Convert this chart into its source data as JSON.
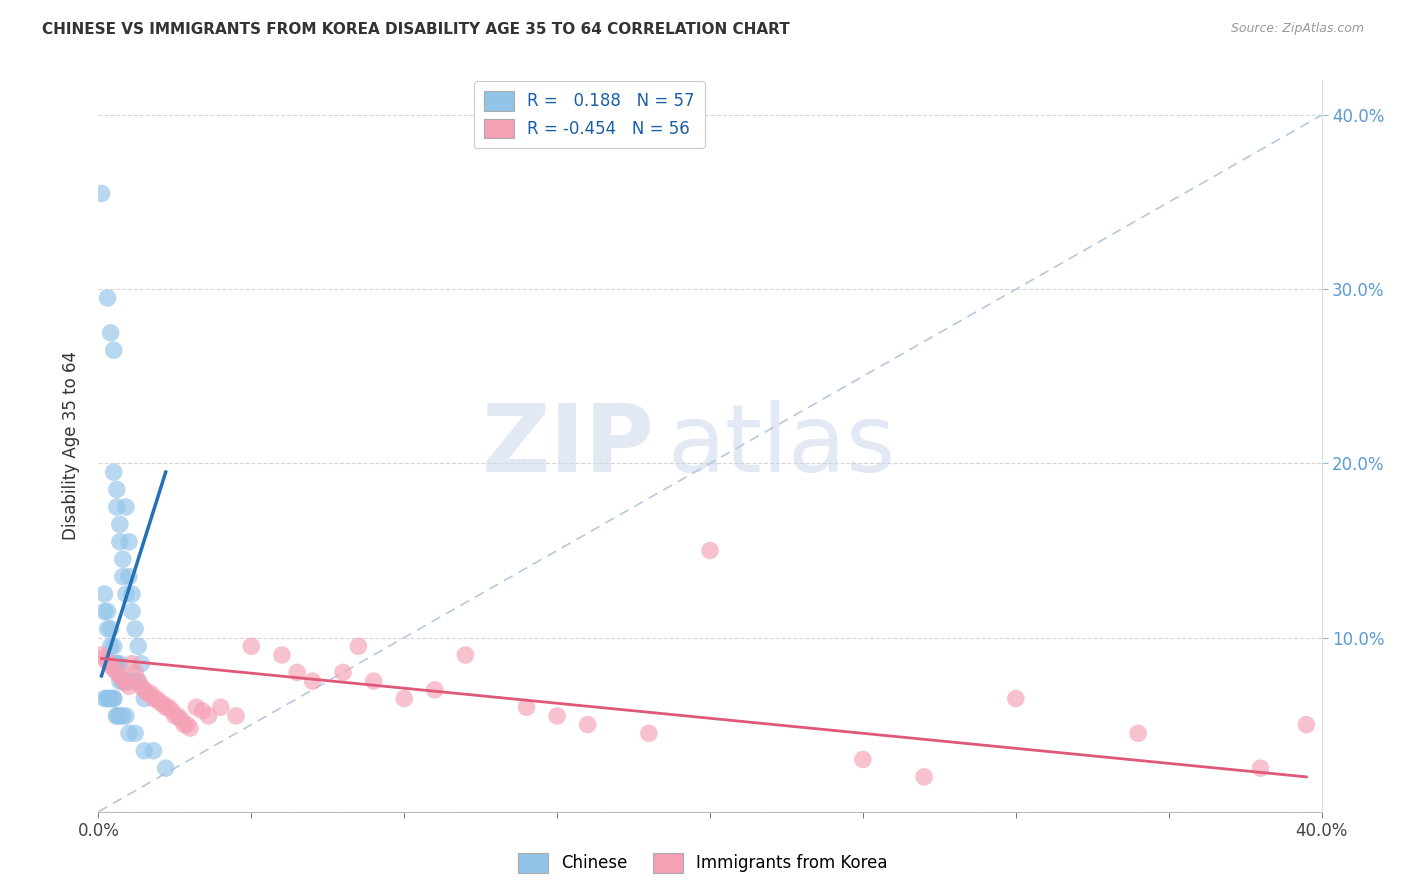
{
  "title": "CHINESE VS IMMIGRANTS FROM KOREA DISABILITY AGE 35 TO 64 CORRELATION CHART",
  "source": "Source: ZipAtlas.com",
  "ylabel": "Disability Age 35 to 64",
  "legend_label1": "Chinese",
  "legend_label2": "Immigrants from Korea",
  "r1": 0.188,
  "n1": 57,
  "r2": -0.454,
  "n2": 56,
  "xlim": [
    0.0,
    0.4
  ],
  "ylim": [
    0.0,
    0.42
  ],
  "color_chinese": "#91c4e8",
  "color_korea": "#f4a0b5",
  "color_line_chinese": "#2471b8",
  "color_line_korea": "#e05878",
  "color_dashed_line": "#b8c8dc",
  "watermark_zip": "#c8d8ec",
  "watermark_atlas": "#b8cce0",
  "chinese_x": [
    0.001,
    0.003,
    0.004,
    0.005,
    0.005,
    0.006,
    0.006,
    0.007,
    0.007,
    0.008,
    0.008,
    0.009,
    0.009,
    0.01,
    0.01,
    0.011,
    0.011,
    0.012,
    0.013,
    0.014,
    0.002,
    0.002,
    0.003,
    0.003,
    0.004,
    0.004,
    0.005,
    0.005,
    0.006,
    0.006,
    0.007,
    0.007,
    0.008,
    0.008,
    0.009,
    0.01,
    0.011,
    0.012,
    0.013,
    0.015,
    0.002,
    0.003,
    0.003,
    0.004,
    0.004,
    0.005,
    0.005,
    0.006,
    0.006,
    0.007,
    0.008,
    0.009,
    0.01,
    0.012,
    0.015,
    0.018,
    0.022
  ],
  "chinese_y": [
    0.355,
    0.295,
    0.275,
    0.265,
    0.195,
    0.185,
    0.175,
    0.165,
    0.155,
    0.145,
    0.135,
    0.125,
    0.175,
    0.155,
    0.135,
    0.125,
    0.115,
    0.105,
    0.095,
    0.085,
    0.125,
    0.115,
    0.115,
    0.105,
    0.105,
    0.095,
    0.095,
    0.085,
    0.085,
    0.085,
    0.085,
    0.075,
    0.075,
    0.075,
    0.075,
    0.075,
    0.075,
    0.075,
    0.075,
    0.065,
    0.065,
    0.065,
    0.065,
    0.065,
    0.065,
    0.065,
    0.065,
    0.055,
    0.055,
    0.055,
    0.055,
    0.055,
    0.045,
    0.045,
    0.035,
    0.035,
    0.025
  ],
  "korea_x": [
    0.001,
    0.002,
    0.003,
    0.004,
    0.005,
    0.006,
    0.007,
    0.008,
    0.009,
    0.01,
    0.011,
    0.012,
    0.013,
    0.014,
    0.015,
    0.016,
    0.017,
    0.018,
    0.019,
    0.02,
    0.021,
    0.022,
    0.023,
    0.024,
    0.025,
    0.026,
    0.027,
    0.028,
    0.029,
    0.03,
    0.032,
    0.034,
    0.036,
    0.04,
    0.045,
    0.05,
    0.06,
    0.065,
    0.07,
    0.08,
    0.085,
    0.09,
    0.1,
    0.11,
    0.12,
    0.14,
    0.15,
    0.16,
    0.18,
    0.2,
    0.25,
    0.27,
    0.3,
    0.34,
    0.38,
    0.395
  ],
  "korea_y": [
    0.09,
    0.088,
    0.086,
    0.084,
    0.082,
    0.08,
    0.078,
    0.076,
    0.074,
    0.072,
    0.085,
    0.08,
    0.075,
    0.072,
    0.07,
    0.068,
    0.068,
    0.065,
    0.065,
    0.063,
    0.062,
    0.06,
    0.06,
    0.058,
    0.055,
    0.055,
    0.053,
    0.05,
    0.05,
    0.048,
    0.06,
    0.058,
    0.055,
    0.06,
    0.055,
    0.095,
    0.09,
    0.08,
    0.075,
    0.08,
    0.095,
    0.075,
    0.065,
    0.07,
    0.09,
    0.06,
    0.055,
    0.05,
    0.045,
    0.15,
    0.03,
    0.02,
    0.065,
    0.045,
    0.025,
    0.05
  ],
  "line_chinese_x0": 0.001,
  "line_chinese_x1": 0.022,
  "line_chinese_y0": 0.078,
  "line_chinese_y1": 0.195,
  "line_korea_x0": 0.001,
  "line_korea_x1": 0.395,
  "line_korea_y0": 0.088,
  "line_korea_y1": 0.02
}
